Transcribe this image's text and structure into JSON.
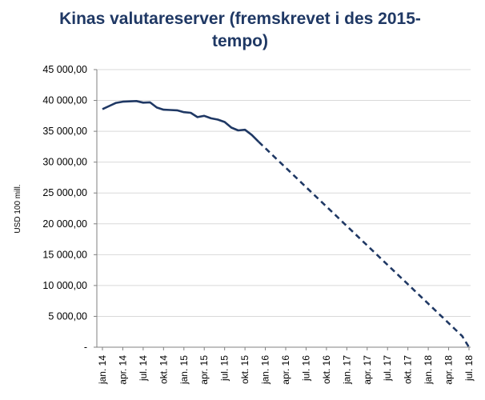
{
  "chart_data": {
    "type": "line",
    "title": "Kinas valutareserver (fremskrevet i des 2015-tempo)",
    "ylabel": "USD 100 mill.",
    "xlabel": "",
    "ylim": [
      0,
      45000
    ],
    "grid": true,
    "y_ticks": [
      "-",
      "5 000,00",
      "10 000,00",
      "15 000,00",
      "20 000,00",
      "25 000,00",
      "30 000,00",
      "35 000,00",
      "40 000,00",
      "45 000,00"
    ],
    "x_tick_labels": [
      "jan. 14",
      "apr. 14",
      "jul. 14",
      "okt. 14",
      "jan. 15",
      "apr. 15",
      "jul. 15",
      "okt. 15",
      "jan. 16",
      "apr. 16",
      "jul. 16",
      "okt. 16",
      "jan. 17",
      "apr. 17",
      "jul. 17",
      "okt. 17",
      "jan. 18",
      "apr. 18",
      "jul. 18"
    ],
    "months": [
      "2014-01",
      "2014-02",
      "2014-03",
      "2014-04",
      "2014-05",
      "2014-06",
      "2014-07",
      "2014-08",
      "2014-09",
      "2014-10",
      "2014-11",
      "2014-12",
      "2015-01",
      "2015-02",
      "2015-03",
      "2015-04",
      "2015-05",
      "2015-06",
      "2015-07",
      "2015-08",
      "2015-09",
      "2015-10",
      "2015-11",
      "2015-12",
      "2016-01",
      "2016-02",
      "2016-03",
      "2016-04",
      "2016-05",
      "2016-06",
      "2016-07",
      "2016-08",
      "2016-09",
      "2016-10",
      "2016-11",
      "2016-12",
      "2017-01",
      "2017-02",
      "2017-03",
      "2017-04",
      "2017-05",
      "2017-06",
      "2017-07",
      "2017-08",
      "2017-09",
      "2017-10",
      "2017-11",
      "2017-12",
      "2018-01",
      "2018-02",
      "2018-03",
      "2018-04",
      "2018-05",
      "2018-06",
      "2018-07"
    ],
    "series": [
      {
        "style": "solid",
        "color": "#1f3864",
        "values": [
          38600,
          39100,
          39600,
          39800,
          39850,
          39900,
          39650,
          39700,
          38850,
          38500,
          38450,
          38400,
          38100,
          38000,
          37300,
          37500,
          37100,
          36900,
          36500,
          35600,
          35150,
          35250,
          34400,
          33300,
          null,
          null,
          null,
          null,
          null,
          null,
          null,
          null,
          null,
          null,
          null,
          null,
          null,
          null,
          null,
          null,
          null,
          null,
          null,
          null,
          null,
          null,
          null,
          null,
          null,
          null,
          null,
          null,
          null,
          null,
          null
        ]
      },
      {
        "style": "dashed",
        "color": "#1f3864",
        "values": [
          null,
          null,
          null,
          null,
          null,
          null,
          null,
          null,
          null,
          null,
          null,
          null,
          null,
          null,
          null,
          null,
          null,
          null,
          null,
          null,
          null,
          null,
          null,
          33300,
          32250,
          31200,
          30150,
          29100,
          28050,
          27000,
          25950,
          24900,
          23850,
          22800,
          21750,
          20700,
          19650,
          18600,
          17550,
          16500,
          15450,
          14400,
          13350,
          12300,
          11250,
          10200,
          9150,
          8100,
          7050,
          6000,
          4950,
          3900,
          2850,
          1800,
          0
        ]
      }
    ]
  }
}
